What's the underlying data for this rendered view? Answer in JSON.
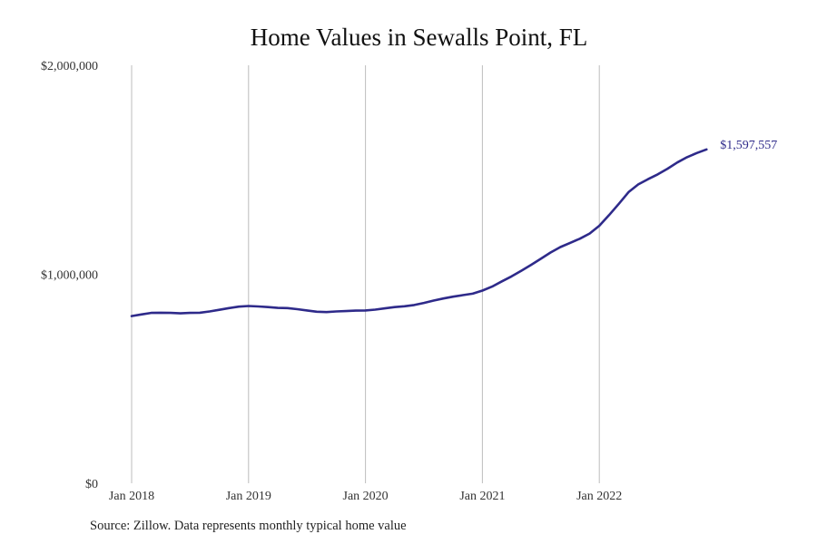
{
  "chart_data": {
    "type": "line",
    "title": "Home Values in Sewalls Point, FL",
    "xlabel": "",
    "ylabel": "",
    "x_ticks": [
      "Jan 2018",
      "Jan 2019",
      "Jan 2020",
      "Jan 2021",
      "Jan 2022"
    ],
    "y_ticks": [
      "$0",
      "$1,000,000",
      "$2,000,000"
    ],
    "y_tick_values": [
      0,
      1000000,
      2000000
    ],
    "ylim": [
      0,
      2000000
    ],
    "xlim": [
      "2018-01",
      "2022-12"
    ],
    "grid": "vertical",
    "line_color": "#2e2a8a",
    "grid_color": "#bdbdbd",
    "end_label": "$1,597,557",
    "series": [
      {
        "x": [
          "2018-01",
          "2018-02",
          "2018-03",
          "2018-04",
          "2018-05",
          "2018-06",
          "2018-07",
          "2018-08",
          "2018-09",
          "2018-10",
          "2018-11",
          "2018-12",
          "2019-01",
          "2019-02",
          "2019-03",
          "2019-04",
          "2019-05",
          "2019-06",
          "2019-07",
          "2019-08",
          "2019-09",
          "2019-10",
          "2019-11",
          "2019-12",
          "2020-01",
          "2020-02",
          "2020-03",
          "2020-04",
          "2020-05",
          "2020-06",
          "2020-07",
          "2020-08",
          "2020-09",
          "2020-10",
          "2020-11",
          "2020-12",
          "2021-01",
          "2021-02",
          "2021-03",
          "2021-04",
          "2021-05",
          "2021-06",
          "2021-07",
          "2021-08",
          "2021-09",
          "2021-10",
          "2021-11",
          "2021-12",
          "2022-01",
          "2022-02",
          "2022-03",
          "2022-04",
          "2022-05",
          "2022-06",
          "2022-07",
          "2022-08",
          "2022-09",
          "2022-10",
          "2022-11",
          "2022-12"
        ],
        "values": [
          800000,
          808000,
          815000,
          816000,
          815000,
          813000,
          815000,
          816000,
          822000,
          830000,
          838000,
          845000,
          848000,
          846000,
          843000,
          839000,
          838000,
          833000,
          827000,
          821000,
          819000,
          822000,
          824000,
          826000,
          827000,
          831000,
          837000,
          843000,
          847000,
          853000,
          863000,
          874000,
          884000,
          893000,
          900000,
          907000,
          922000,
          941000,
          966000,
          990000,
          1017000,
          1045000,
          1074000,
          1104000,
          1130000,
          1150000,
          1170000,
          1195000,
          1232000,
          1283000,
          1337000,
          1393000,
          1430000,
          1455000,
          1478000,
          1505000,
          1535000,
          1560000,
          1580000,
          1597557
        ]
      }
    ]
  },
  "source_note": "Source: Zillow. Data represents monthly typical home value"
}
